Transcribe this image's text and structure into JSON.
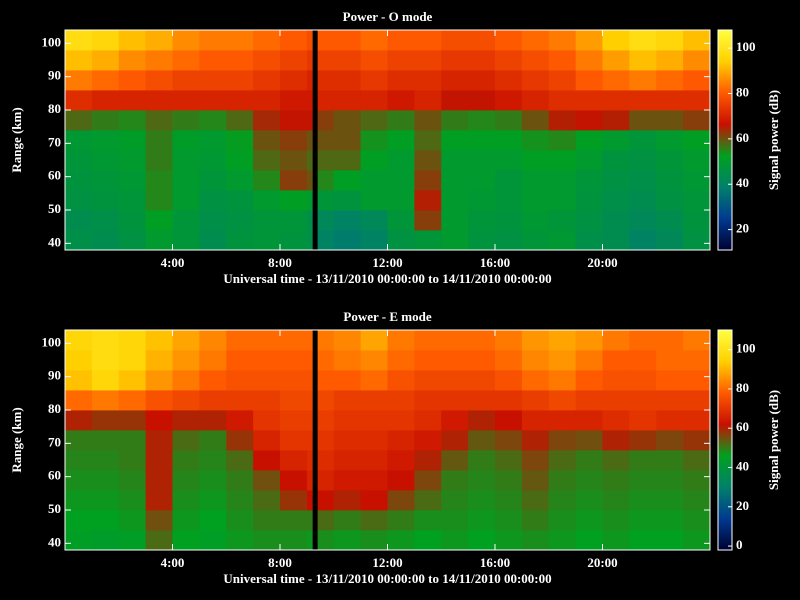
{
  "chart_data": [
    {
      "type": "heatmap",
      "title": "Power - O mode",
      "xlabel": "Universal time - 13/11/2010 00:00:00 to 14/11/2010 00:00:00",
      "ylabel": "Range (km)",
      "colorbar_label": "Signal power (dB)",
      "x": [
        0,
        1,
        2,
        3,
        4,
        5,
        6,
        7,
        8,
        9,
        9.2,
        9.4,
        10,
        11,
        12,
        13,
        14,
        15,
        16,
        17,
        18,
        19,
        20,
        21,
        22,
        23,
        24
      ],
      "y": [
        38,
        44,
        50,
        56,
        62,
        68,
        74,
        80,
        86,
        92,
        98,
        104
      ],
      "z": [
        [
          45,
          44,
          46,
          50,
          48,
          44,
          47,
          48,
          47,
          45,
          null,
          40,
          38,
          40,
          46,
          48,
          50,
          47,
          46,
          48,
          49,
          45,
          44,
          40,
          42,
          46
        ],
        [
          44,
          45,
          47,
          52,
          48,
          45,
          46,
          48,
          48,
          45,
          null,
          42,
          40,
          42,
          48,
          62,
          50,
          48,
          47,
          49,
          48,
          46,
          44,
          42,
          44,
          47
        ],
        [
          46,
          47,
          48,
          55,
          50,
          46,
          47,
          50,
          52,
          50,
          null,
          48,
          47,
          50,
          50,
          65,
          50,
          49,
          48,
          50,
          50,
          47,
          45,
          44,
          46,
          48
        ],
        [
          47,
          48,
          49,
          55,
          50,
          48,
          50,
          55,
          62,
          60,
          null,
          55,
          52,
          50,
          50,
          62,
          50,
          50,
          48,
          50,
          50,
          48,
          46,
          45,
          47,
          49
        ],
        [
          48,
          49,
          50,
          56,
          50,
          49,
          52,
          58,
          60,
          58,
          null,
          58,
          58,
          52,
          50,
          60,
          50,
          50,
          50,
          52,
          52,
          50,
          47,
          46,
          48,
          50
        ],
        [
          49,
          50,
          51,
          56,
          51,
          50,
          53,
          60,
          62,
          60,
          null,
          60,
          60,
          54,
          52,
          58,
          52,
          52,
          52,
          54,
          55,
          52,
          50,
          48,
          50,
          52
        ],
        [
          58,
          56,
          55,
          58,
          56,
          55,
          58,
          64,
          66,
          66,
          null,
          62,
          60,
          58,
          56,
          60,
          56,
          55,
          56,
          60,
          65,
          66,
          65,
          60,
          60,
          62
        ],
        [
          72,
          70,
          70,
          70,
          70,
          70,
          70,
          70,
          68,
          68,
          null,
          70,
          70,
          70,
          68,
          70,
          66,
          66,
          68,
          70,
          72,
          72,
          72,
          72,
          72,
          72
        ],
        [
          84,
          82,
          80,
          78,
          76,
          76,
          76,
          74,
          72,
          70,
          null,
          72,
          72,
          74,
          72,
          72,
          70,
          70,
          72,
          74,
          76,
          80,
          82,
          84,
          82,
          80
        ],
        [
          92,
          90,
          86,
          84,
          82,
          80,
          80,
          78,
          76,
          74,
          null,
          76,
          76,
          78,
          76,
          76,
          74,
          74,
          76,
          78,
          80,
          84,
          88,
          92,
          90,
          86
        ],
        [
          98,
          96,
          92,
          90,
          86,
          84,
          84,
          82,
          80,
          78,
          null,
          80,
          80,
          82,
          80,
          80,
          78,
          78,
          80,
          82,
          84,
          88,
          94,
          98,
          96,
          92
        ]
      ],
      "xlim": [
        0,
        24
      ],
      "xticks": [
        {
          "value": 4,
          "label": "4:00"
        },
        {
          "value": 8,
          "label": "8:00"
        },
        {
          "value": 12,
          "label": "12:00"
        },
        {
          "value": 16,
          "label": "16:00"
        },
        {
          "value": 20,
          "label": "20:00"
        }
      ],
      "ylim": [
        38,
        104
      ],
      "yticks": [
        40,
        50,
        60,
        70,
        80,
        90,
        100
      ],
      "zlim": [
        11,
        108
      ],
      "zticks": [
        20,
        40,
        60,
        80,
        100
      ],
      "colormap": [
        "#000030",
        "#003a90",
        "#00806a",
        "#00a020",
        "#c81000",
        "#ff5a00",
        "#ffd000",
        "#ffff40"
      ]
    },
    {
      "type": "heatmap",
      "title": "Power - E mode",
      "xlabel": "Universal time - 13/11/2010 00:00:00 to 14/11/2010 00:00:00",
      "ylabel": "Range (km)",
      "colorbar_label": "Signal power (dB)",
      "x": [
        0,
        1,
        2,
        3,
        4,
        5,
        6,
        7,
        8,
        9,
        9.2,
        9.4,
        10,
        11,
        12,
        13,
        14,
        15,
        16,
        17,
        18,
        19,
        20,
        21,
        22,
        23,
        24
      ],
      "y": [
        38,
        44,
        50,
        56,
        62,
        68,
        74,
        80,
        86,
        92,
        98,
        104
      ],
      "z": [
        [
          45,
          44,
          45,
          52,
          46,
          45,
          47,
          48,
          48,
          47,
          null,
          48,
          47,
          48,
          47,
          46,
          47,
          46,
          47,
          48,
          47,
          46,
          47,
          46,
          46,
          47
        ],
        [
          46,
          46,
          47,
          55,
          47,
          46,
          48,
          50,
          50,
          50,
          null,
          52,
          50,
          52,
          50,
          48,
          48,
          47,
          48,
          50,
          48,
          47,
          48,
          47,
          47,
          48
        ],
        [
          47,
          47,
          48,
          60,
          48,
          47,
          49,
          52,
          58,
          62,
          null,
          62,
          60,
          62,
          56,
          52,
          49,
          48,
          49,
          52,
          49,
          48,
          49,
          48,
          48,
          49
        ],
        [
          48,
          48,
          49,
          60,
          49,
          48,
          50,
          55,
          62,
          66,
          null,
          66,
          64,
          64,
          62,
          56,
          50,
          49,
          50,
          54,
          50,
          49,
          50,
          49,
          49,
          50
        ],
        [
          49,
          49,
          50,
          60,
          50,
          49,
          52,
          62,
          66,
          68,
          null,
          68,
          66,
          66,
          64,
          60,
          54,
          50,
          52,
          56,
          52,
          50,
          52,
          50,
          50,
          52
        ],
        [
          50,
          50,
          50,
          60,
          52,
          50,
          58,
          66,
          70,
          70,
          null,
          70,
          68,
          68,
          66,
          64,
          60,
          54,
          56,
          60,
          56,
          55,
          60,
          58,
          56,
          58
        ],
        [
          60,
          58,
          58,
          62,
          60,
          60,
          64,
          70,
          72,
          72,
          null,
          72,
          70,
          70,
          70,
          68,
          64,
          60,
          62,
          66,
          66,
          66,
          68,
          70,
          68,
          68
        ],
        [
          80,
          82,
          80,
          76,
          74,
          72,
          72,
          72,
          74,
          74,
          null,
          74,
          72,
          72,
          72,
          70,
          70,
          70,
          70,
          72,
          74,
          72,
          72,
          72,
          72,
          72
        ],
        [
          92,
          96,
          92,
          86,
          82,
          78,
          76,
          76,
          76,
          76,
          null,
          78,
          78,
          80,
          76,
          74,
          74,
          74,
          76,
          80,
          82,
          78,
          76,
          76,
          78,
          78
        ],
        [
          94,
          98,
          96,
          90,
          86,
          82,
          78,
          78,
          78,
          78,
          null,
          80,
          82,
          84,
          80,
          78,
          78,
          78,
          80,
          84,
          86,
          82,
          78,
          78,
          80,
          80
        ],
        [
          96,
          98,
          96,
          92,
          88,
          84,
          80,
          80,
          80,
          80,
          null,
          82,
          84,
          88,
          82,
          80,
          80,
          80,
          82,
          86,
          88,
          86,
          82,
          80,
          80,
          82
        ]
      ],
      "xlim": [
        0,
        24
      ],
      "xticks": [
        {
          "value": 4,
          "label": "4:00"
        },
        {
          "value": 8,
          "label": "8:00"
        },
        {
          "value": 12,
          "label": "12:00"
        },
        {
          "value": 16,
          "label": "16:00"
        },
        {
          "value": 20,
          "label": "20:00"
        }
      ],
      "ylim": [
        38,
        104
      ],
      "yticks": [
        40,
        50,
        60,
        70,
        80,
        90,
        100
      ],
      "zlim": [
        -2,
        110
      ],
      "zticks": [
        0,
        20,
        40,
        60,
        80,
        100
      ],
      "colormap": [
        "#000030",
        "#003a90",
        "#00806a",
        "#00a020",
        "#c81000",
        "#ff5a00",
        "#ffd000",
        "#ffff40"
      ]
    }
  ]
}
